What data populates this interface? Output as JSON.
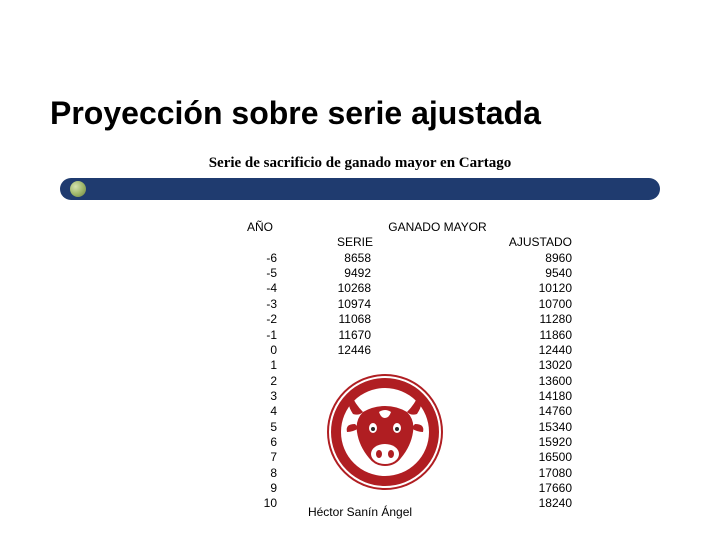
{
  "title": "Proyección sobre serie ajustada",
  "subtitle": "Serie de sacrificio de ganado mayor en Cartago",
  "headers": {
    "ano": "AÑO",
    "ganado": "GANADO MAYOR",
    "serie": "SERIE",
    "ajustado": "AJUSTADO"
  },
  "rows": [
    {
      "ano": "-6",
      "serie": "8658",
      "ajustado": "8960"
    },
    {
      "ano": "-5",
      "serie": "9492",
      "ajustado": "9540"
    },
    {
      "ano": "-4",
      "serie": "10268",
      "ajustado": "10120"
    },
    {
      "ano": "-3",
      "serie": "10974",
      "ajustado": "10700"
    },
    {
      "ano": "-2",
      "serie": "11068",
      "ajustado": "11280"
    },
    {
      "ano": "-1",
      "serie": "11670",
      "ajustado": "11860"
    },
    {
      "ano": "0",
      "serie": "12446",
      "ajustado": "12440"
    },
    {
      "ano": "1",
      "serie": "",
      "ajustado": "13020"
    },
    {
      "ano": "2",
      "serie": "",
      "ajustado": "13600"
    },
    {
      "ano": "3",
      "serie": "",
      "ajustado": "14180"
    },
    {
      "ano": "4",
      "serie": "",
      "ajustado": "14760"
    },
    {
      "ano": "5",
      "serie": "",
      "ajustado": "15340"
    },
    {
      "ano": "6",
      "serie": "",
      "ajustado": "15920"
    },
    {
      "ano": "7",
      "serie": "",
      "ajustado": "16500"
    },
    {
      "ano": "8",
      "serie": "",
      "ajustado": "17080"
    },
    {
      "ano": "9",
      "serie": "",
      "ajustado": "17660"
    },
    {
      "ano": "10",
      "serie": "",
      "ajustado": "18240"
    }
  ],
  "logo": {
    "outer_color": "#b01e22",
    "inner_bg": "#ffffff",
    "bull_color": "#b01e22",
    "ring_stroke": "#ffffff"
  },
  "footer": "Héctor Sanín Ángel",
  "colors": {
    "band": "#1f3b6f",
    "text": "#000000",
    "background": "#ffffff"
  }
}
